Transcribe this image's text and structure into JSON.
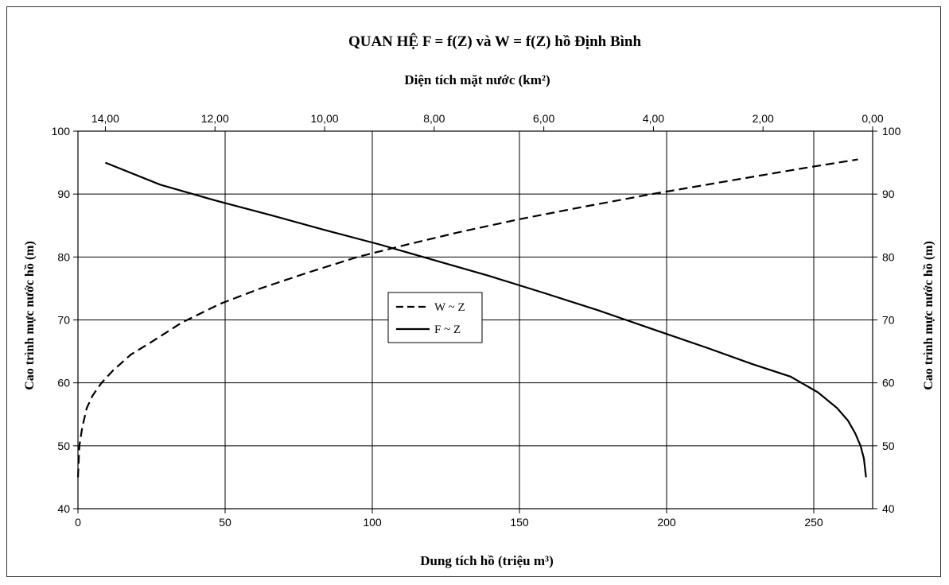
{
  "chart_data": {
    "type": "line",
    "title": "QUAN HỆ F =  f(Z) và W =  f(Z) hồ Định Bình",
    "top_xlabel": "Diện tích mặt nước (km²)",
    "bottom_xlabel": "Dung tích hồ  (triệu m³)",
    "left_ylabel": "Cao trình mực nước hồ (m)",
    "right_ylabel": "Cao trình mực nước hồ  (m)",
    "bottom_xlim": [
      0,
      270
    ],
    "bottom_xticks": [
      0,
      50,
      100,
      150,
      200,
      250
    ],
    "top_xlim": [
      14.5,
      0
    ],
    "top_xticks": [
      14,
      12,
      10,
      8,
      6,
      4,
      2,
      0
    ],
    "top_xtick_labels": [
      "14,00",
      "12,00",
      "10,00",
      "8,00",
      "6,00",
      "4,00",
      "2,00",
      "0,00"
    ],
    "ylim": [
      40,
      100
    ],
    "yticks": [
      40,
      50,
      60,
      70,
      80,
      90,
      100
    ],
    "grid": true,
    "legend_position": "center",
    "series": [
      {
        "name": "W ~ Z",
        "axis": "bottom",
        "style": "dashed",
        "color": "#000000",
        "x": [
          0,
          0.5,
          1.5,
          3,
          5,
          8,
          12,
          18,
          25,
          35,
          48,
          62,
          78,
          95,
          112,
          130,
          150,
          172,
          195,
          220,
          245,
          265
        ],
        "y": [
          45,
          50,
          53,
          56,
          58,
          60,
          62,
          64.5,
          66.5,
          69.5,
          72.5,
          75,
          77.5,
          80,
          82,
          84,
          86,
          88,
          90,
          92,
          94,
          95.5
        ]
      },
      {
        "name": "F ~ Z",
        "axis": "top",
        "style": "solid",
        "color": "#000000",
        "x": [
          0.12,
          0.16,
          0.22,
          0.32,
          0.45,
          0.65,
          1.0,
          1.5,
          2.2,
          3.0,
          4.0,
          5.0,
          6.0,
          7.0,
          8.0,
          9.0,
          10.0,
          11.0,
          12.0,
          13.0,
          14.0
        ],
        "y": [
          45,
          48,
          50,
          52,
          54,
          56,
          58.5,
          61,
          63,
          65.5,
          68.5,
          71.5,
          74.3,
          77,
          79.5,
          82,
          84.3,
          86.7,
          89,
          91.5,
          95
        ]
      }
    ]
  }
}
